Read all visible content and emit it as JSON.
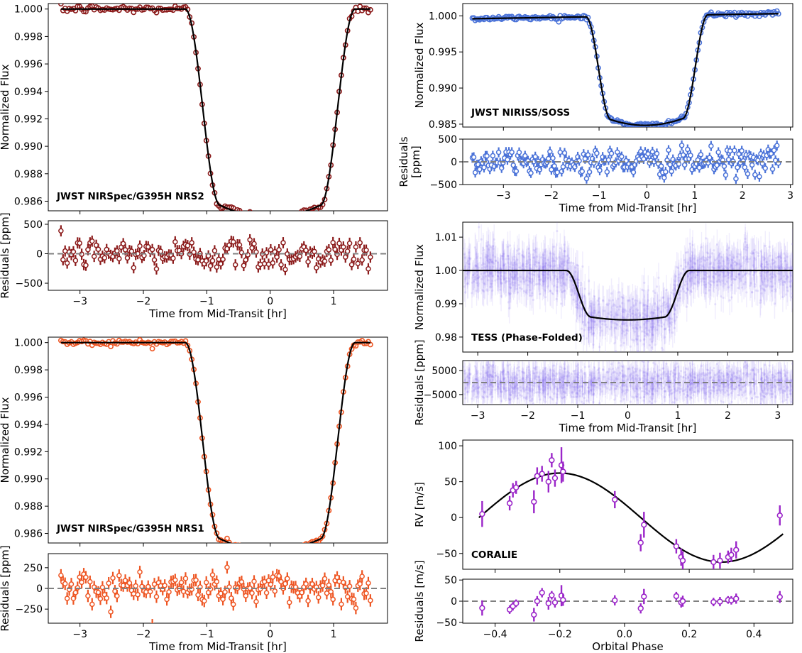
{
  "chart_data": [
    {
      "id": "nrs2",
      "type": "scatter",
      "label": "JWST NIRSpec/G395H NRS2",
      "color": "#8b1a1a",
      "xlabel": "Time from Mid-Transit [hr]",
      "ylabel": "Normalized Flux",
      "resid_ylabel": "Residuals [ppm]",
      "xlim": [
        -3.5,
        1.85
      ],
      "ylim": [
        0.9853,
        1.0004
      ],
      "resid_ylim": [
        -620,
        560
      ],
      "xticks": [
        -3,
        -2,
        -1,
        0,
        1
      ],
      "yticks": [
        0.986,
        0.988,
        0.99,
        0.992,
        0.994,
        0.996,
        0.998,
        1.0
      ],
      "resid_yticks": [
        -500,
        0,
        500
      ],
      "ytick_decimals": 3,
      "transit": {
        "center": 0.0,
        "t14": 2.68,
        "t23": 1.58,
        "depth": 0.0143,
        "x_start": -3.3,
        "x_end": 1.58,
        "n_points": 150
      },
      "resid_scatter_ppm": 140,
      "resid_err_ppm": 95
    },
    {
      "id": "nrs1",
      "type": "scatter",
      "label": "JWST NIRSpec/G395H NRS1",
      "color": "#ee5522",
      "xlabel": "Time from Mid-Transit [hr]",
      "ylabel": "Normalized Flux",
      "resid_ylabel": "Residuals [ppm]",
      "xlim": [
        -3.5,
        1.85
      ],
      "ylim": [
        0.9853,
        1.0004
      ],
      "resid_ylim": [
        -420,
        420
      ],
      "xticks": [
        -3,
        -2,
        -1,
        0,
        1
      ],
      "yticks": [
        0.986,
        0.988,
        0.99,
        0.992,
        0.994,
        0.996,
        0.998,
        1.0
      ],
      "resid_yticks": [
        -250,
        0,
        250
      ],
      "ytick_decimals": 3,
      "transit": {
        "center": 0.0,
        "t14": 2.68,
        "t23": 1.58,
        "depth": 0.0144,
        "x_start": -3.3,
        "x_end": 1.58,
        "n_points": 150
      },
      "resid_scatter_ppm": 110,
      "resid_err_ppm": 75
    },
    {
      "id": "niriss",
      "type": "scatter",
      "label": "JWST NIRISS/SOSS",
      "color": "#4a72d8",
      "xlabel": "Time from Mid-Transit [hr]",
      "ylabel": "Normalized Flux",
      "resid_ylabel": "Residuals\n[ppm]",
      "xlim": [
        -3.85,
        3.05
      ],
      "ylim": [
        0.9846,
        1.0017
      ],
      "resid_ylim": [
        -500,
        500
      ],
      "xticks": [
        -3,
        -2,
        -1,
        0,
        1,
        2,
        3
      ],
      "yticks": [
        0.985,
        0.99,
        0.995,
        1.0
      ],
      "resid_yticks": [
        -500,
        0,
        500
      ],
      "ytick_decimals": 3,
      "transit": {
        "center": 0.0,
        "t14": 2.55,
        "t23": 1.5,
        "depth": 0.0143,
        "x_start": -3.65,
        "x_end": 2.75,
        "n_points": 210,
        "slope_per_hr": 0.00011
      },
      "resid_scatter_ppm": 150,
      "resid_err_ppm": 110
    },
    {
      "id": "tess",
      "type": "scatter",
      "label": "TESS (Phase-Folded)",
      "color": "#8877ee",
      "xlabel": "Time from Mid-Transit [hr]",
      "ylabel": "Normalized Flux",
      "resid_ylabel": "Residuals [ppm]",
      "xlim": [
        -3.3,
        3.3
      ],
      "ylim": [
        0.9755,
        1.0145
      ],
      "resid_ylim": [
        -9200,
        9200
      ],
      "xticks": [
        -3,
        -2,
        -1,
        0,
        1,
        2,
        3
      ],
      "yticks": [
        0.98,
        0.99,
        1.0,
        1.01
      ],
      "resid_yticks": [
        -5000,
        5000
      ],
      "ytick_decimals": 2,
      "transit": {
        "center": 0.0,
        "t14": 2.46,
        "t23": 1.46,
        "depth": 0.014,
        "x_start": -3.3,
        "x_end": 3.3,
        "n_points": 1300
      },
      "resid_scatter_ppm": 3800,
      "resid_err_ppm": 4500
    },
    {
      "id": "coralie",
      "type": "scatter",
      "label": "CORALIE",
      "color": "#9b26c9",
      "xlabel": "Orbital Phase",
      "ylabel": "RV [m/s]",
      "resid_ylabel": "Residuals [m/s]",
      "xlim": [
        -0.5,
        0.52
      ],
      "ylim": [
        -72,
        108
      ],
      "resid_ylim": [
        -52,
        52
      ],
      "xticks": [
        -0.4,
        -0.2,
        0.0,
        0.2,
        0.4
      ],
      "yticks": [
        -50,
        0,
        50,
        100
      ],
      "resid_yticks": [
        -50,
        0,
        50
      ],
      "ytick_decimals": 0,
      "xtick_decimals": 1,
      "model": {
        "amplitude_ms": 62,
        "x_start": -0.45,
        "x_end": 0.49,
        "peak_phase": -0.2
      },
      "points": [
        {
          "phase": -0.44,
          "rv": 5,
          "err": 18,
          "resid": -16
        },
        {
          "phase": -0.355,
          "rv": 20,
          "err": 10,
          "resid": -20
        },
        {
          "phase": -0.345,
          "rv": 38,
          "err": 10,
          "resid": -12
        },
        {
          "phase": -0.335,
          "rv": 42,
          "err": 9,
          "resid": -5
        },
        {
          "phase": -0.28,
          "rv": 22,
          "err": 16,
          "resid": -32
        },
        {
          "phase": -0.27,
          "rv": 58,
          "err": 12,
          "resid": 0
        },
        {
          "phase": -0.255,
          "rv": 61,
          "err": 11,
          "resid": 20
        },
        {
          "phase": -0.235,
          "rv": 50,
          "err": 15,
          "resid": -5
        },
        {
          "phase": -0.225,
          "rv": 80,
          "err": 10,
          "resid": 14
        },
        {
          "phase": -0.215,
          "rv": 55,
          "err": 12,
          "resid": -3
        },
        {
          "phase": -0.195,
          "rv": 73,
          "err": 25,
          "resid": 13
        },
        {
          "phase": -0.19,
          "rv": 64,
          "err": 14,
          "resid": 3
        },
        {
          "phase": -0.03,
          "rv": 25,
          "err": 12,
          "resid": 2
        },
        {
          "phase": 0.05,
          "rv": -35,
          "err": 12,
          "resid": -17
        },
        {
          "phase": 0.06,
          "rv": -10,
          "err": 18,
          "resid": 11
        },
        {
          "phase": 0.16,
          "rv": -40,
          "err": 10,
          "resid": 12
        },
        {
          "phase": 0.175,
          "rv": -55,
          "err": 12,
          "resid": -3
        },
        {
          "phase": 0.18,
          "rv": -60,
          "err": 13,
          "resid": 0
        },
        {
          "phase": 0.275,
          "rv": -62,
          "err": 10,
          "resid": -2
        },
        {
          "phase": 0.295,
          "rv": -60,
          "err": 11,
          "resid": -1
        },
        {
          "phase": 0.32,
          "rv": -55,
          "err": 9,
          "resid": 3
        },
        {
          "phase": 0.33,
          "rv": -52,
          "err": 10,
          "resid": 2
        },
        {
          "phase": 0.345,
          "rv": -45,
          "err": 12,
          "resid": 6
        },
        {
          "phase": 0.48,
          "rv": 3,
          "err": 14,
          "resid": 10
        }
      ]
    }
  ]
}
